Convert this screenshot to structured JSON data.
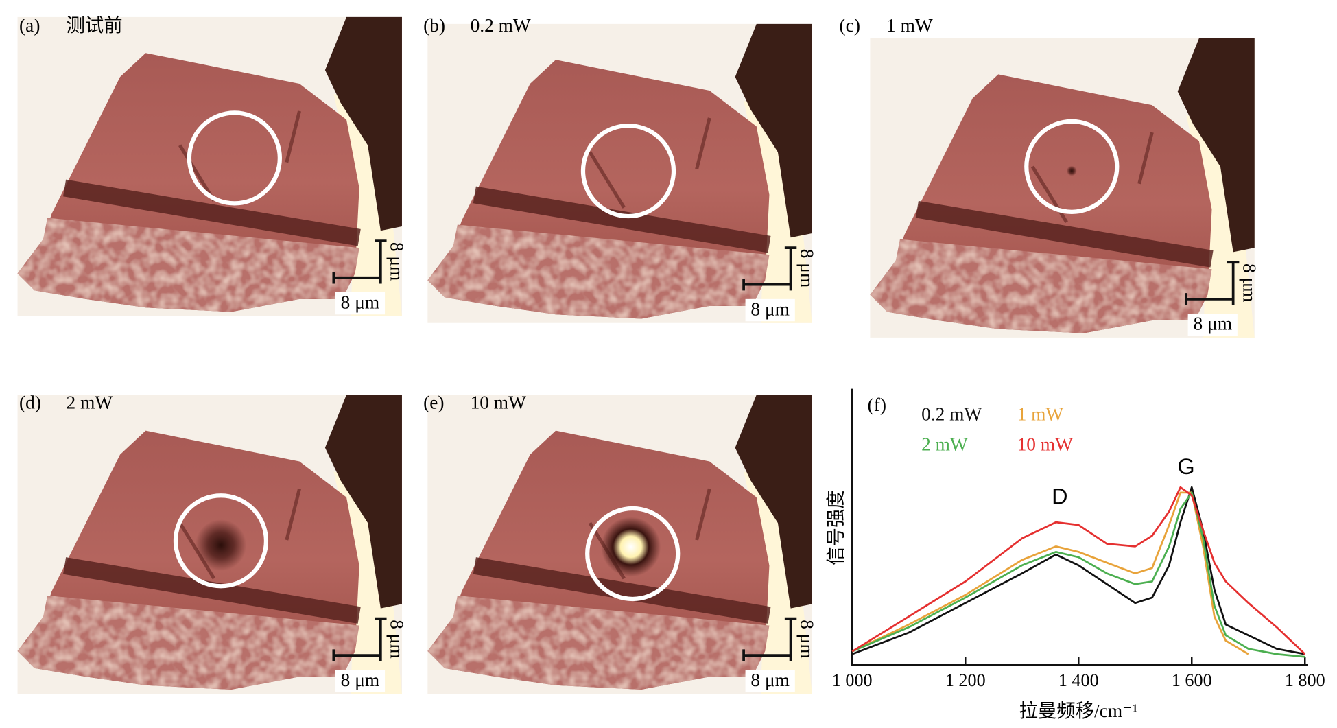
{
  "panels": [
    {
      "label": "(a)",
      "condition": "测试前"
    },
    {
      "label": "(b)",
      "condition": "0.2 mW"
    },
    {
      "label": "(c)",
      "condition": "1 mW"
    },
    {
      "label": "(d)",
      "condition": "2 mW"
    },
    {
      "label": "(e)",
      "condition": "10 mW"
    }
  ],
  "scale_bar": "8 μm",
  "chart_data": {
    "type": "line",
    "panel_label": "(f)",
    "x": [
      1000,
      1100,
      1200,
      1300,
      1360,
      1400,
      1450,
      1500,
      1530,
      1560,
      1580,
      1600,
      1620,
      1640,
      1660,
      1700,
      1750,
      1800
    ],
    "series": [
      {
        "name": "0.2 mW",
        "color": "#111111",
        "values": [
          3,
          11,
          22,
          33,
          40,
          36,
          29,
          22,
          24,
          36,
          52,
          65,
          49,
          27,
          14,
          10,
          5,
          3
        ]
      },
      {
        "name": "1 mW",
        "color": "#e8a33a",
        "values": [
          4,
          14,
          25,
          38,
          43,
          41,
          37,
          33,
          35,
          51,
          63,
          63,
          43,
          17,
          8,
          3,
          null,
          null
        ]
      },
      {
        "name": "2 mW",
        "color": "#4caf50",
        "values": [
          4,
          13,
          24,
          36,
          41,
          39,
          33,
          29,
          30,
          43,
          57,
          63,
          46,
          21,
          10,
          5,
          3,
          2
        ]
      },
      {
        "name": "10 mW",
        "color": "#e53030",
        "values": [
          4,
          17,
          30,
          46,
          52,
          51,
          44,
          43,
          47,
          56,
          65,
          62,
          49,
          37,
          30,
          22,
          13,
          3
        ]
      }
    ],
    "xlim": [
      1000,
      1800
    ],
    "ylim": [
      0,
      100
    ],
    "xticks": [
      {
        "value": 1000,
        "label": "1 000"
      },
      {
        "value": 1200,
        "label": "1 200"
      },
      {
        "value": 1400,
        "label": "1 400"
      },
      {
        "value": 1600,
        "label": "1 600"
      },
      {
        "value": 1800,
        "label": "1 800"
      }
    ],
    "x_label": "拉曼频移/cm⁻¹",
    "y_label": "信号强度",
    "annotations": [
      {
        "text": "D"
      },
      {
        "text": "G"
      }
    ]
  }
}
